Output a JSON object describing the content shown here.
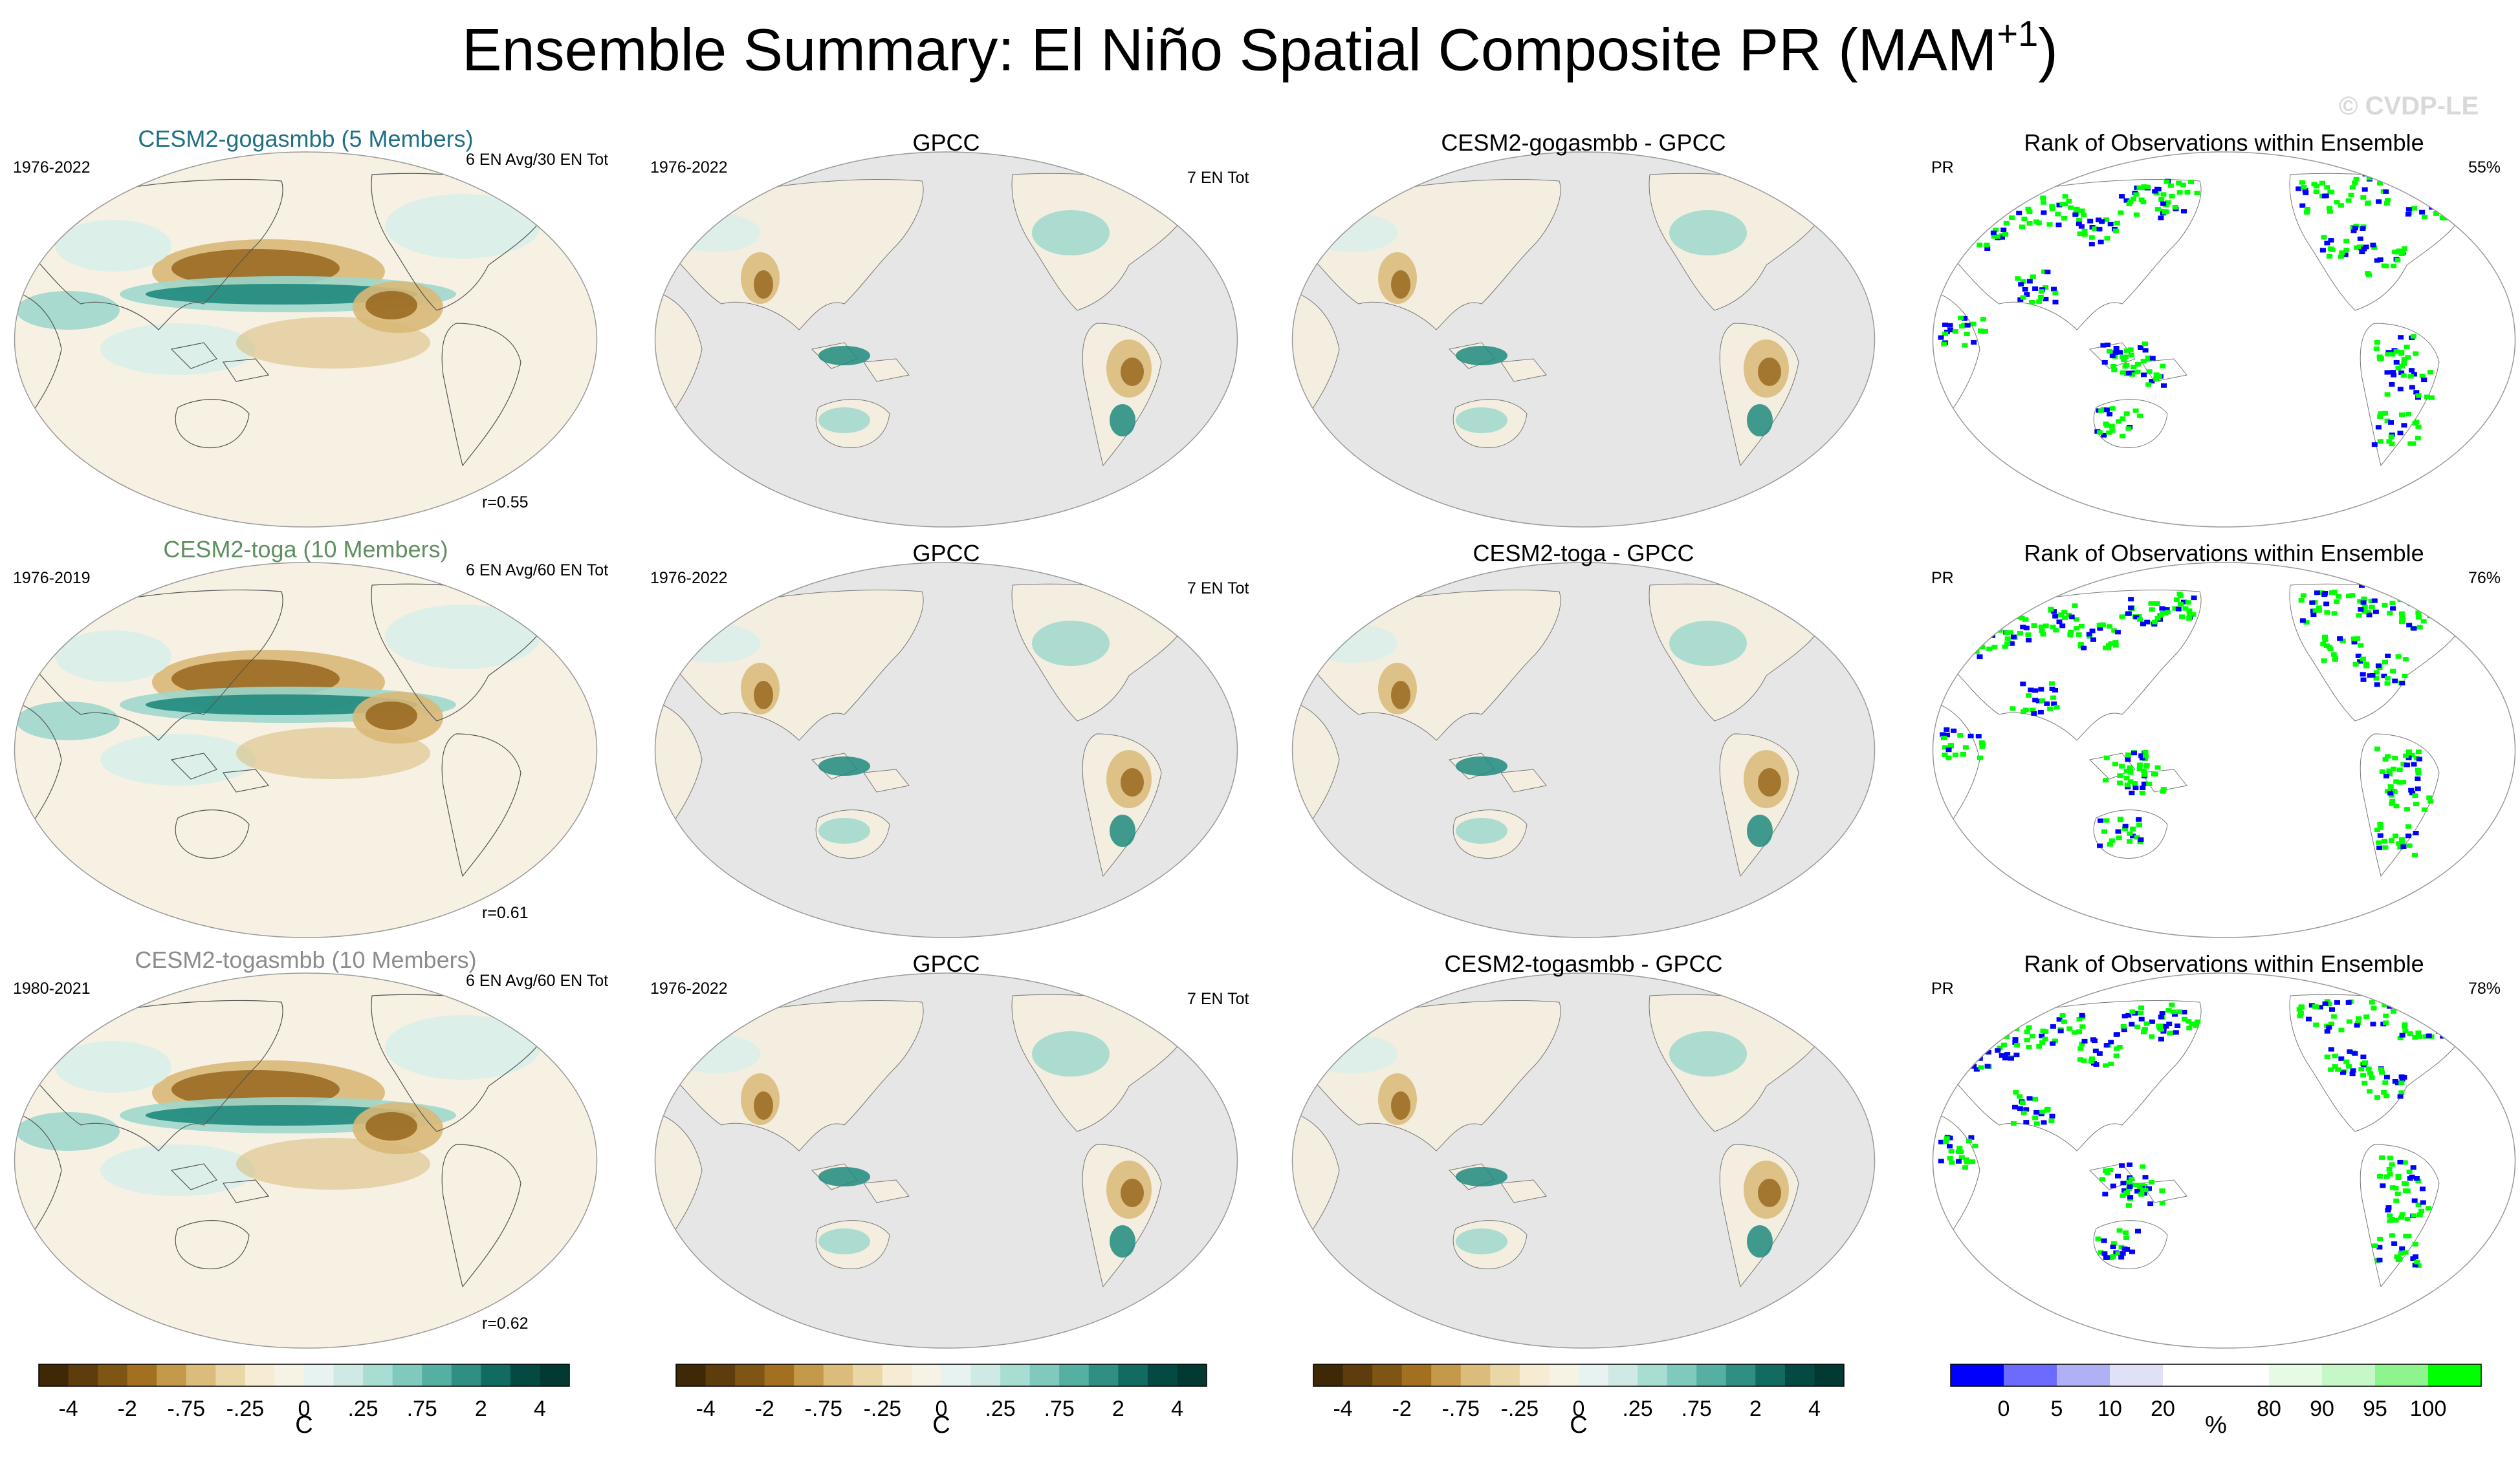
{
  "title": {
    "main": "Ensemble Summary: El Niño Spatial Composite PR (MAM",
    "superscript": "+1",
    "end": ")"
  },
  "watermark": "© CVDP-LE",
  "rows": [
    {
      "model": {
        "title": "CESM2-gogasmbb (5 Members)",
        "title_color": "#1f6f86",
        "years": "1976-2022",
        "events": "6 EN Avg/30 EN Tot",
        "corr": "r=0.55"
      },
      "obs": {
        "title": "GPCC",
        "years": "1976-2022",
        "events": "7 EN Tot"
      },
      "diff": {
        "title": "CESM2-gogasmbb - GPCC"
      },
      "rank": {
        "title": "Rank of Observations within Ensemble",
        "var": "PR",
        "pct": "55%"
      }
    },
    {
      "model": {
        "title": "CESM2-toga (10 Members)",
        "title_color": "#5f8f5f",
        "years": "1976-2019",
        "events": "6 EN Avg/60 EN Tot",
        "corr": "r=0.61"
      },
      "obs": {
        "title": "GPCC",
        "years": "1976-2022",
        "events": "7 EN Tot"
      },
      "diff": {
        "title": "CESM2-toga - GPCC"
      },
      "rank": {
        "title": "Rank of Observations within Ensemble",
        "var": "PR",
        "pct": "76%"
      }
    },
    {
      "model": {
        "title": "CESM2-togasmbb (10 Members)",
        "title_color": "#8c8c8c",
        "years": "1980-2021",
        "events": "6 EN Avg/60 EN Tot",
        "corr": "r=0.62"
      },
      "obs": {
        "title": "GPCC",
        "years": "1976-2022",
        "events": "7 EN Tot"
      },
      "diff": {
        "title": "CESM2-togasmbb - GPCC"
      },
      "rank": {
        "title": "Rank of Observations within Ensemble",
        "var": "PR",
        "pct": "78%"
      }
    }
  ],
  "chart_data": {
    "type": "heatmap",
    "colorbars": [
      {
        "name": "model-colorbar",
        "unit": "C",
        "ticks": [
          "-4",
          "-2",
          "-.75",
          "-.25",
          "0",
          ".25",
          ".75",
          "2",
          "4"
        ],
        "colors": [
          "#3f2805",
          "#5e3c0c",
          "#7f5513",
          "#a2701f",
          "#c49a4a",
          "#dcbc7a",
          "#ead7a8",
          "#f5ecd3",
          "#f7f2e6",
          "#e8f2f0",
          "#cfe9e4",
          "#a8ddd3",
          "#7fcabd",
          "#55b0a2",
          "#2f8f82",
          "#126b60",
          "#054a42",
          "#023a33"
        ]
      },
      {
        "name": "obs-colorbar",
        "unit": "C",
        "ticks": [
          "-4",
          "-2",
          "-.75",
          "-.25",
          "0",
          ".25",
          ".75",
          "2",
          "4"
        ],
        "colors": [
          "#3f2805",
          "#5e3c0c",
          "#7f5513",
          "#a2701f",
          "#c49a4a",
          "#dcbc7a",
          "#ead7a8",
          "#f5ecd3",
          "#f7f2e6",
          "#e8f2f0",
          "#cfe9e4",
          "#a8ddd3",
          "#7fcabd",
          "#55b0a2",
          "#2f8f82",
          "#126b60",
          "#054a42",
          "#023a33"
        ]
      },
      {
        "name": "diff-colorbar",
        "unit": "C",
        "ticks": [
          "-4",
          "-2",
          "-.75",
          "-.25",
          "0",
          ".25",
          ".75",
          "2",
          "4"
        ],
        "colors": [
          "#3f2805",
          "#5e3c0c",
          "#7f5513",
          "#a2701f",
          "#c49a4a",
          "#dcbc7a",
          "#ead7a8",
          "#f5ecd3",
          "#f7f2e6",
          "#e8f2f0",
          "#cfe9e4",
          "#a8ddd3",
          "#7fcabd",
          "#55b0a2",
          "#2f8f82",
          "#126b60",
          "#054a42",
          "#023a33"
        ]
      },
      {
        "name": "rank-colorbar",
        "unit": "%",
        "ticks": [
          "0",
          "5",
          "10",
          "20",
          "80",
          "90",
          "95",
          "100"
        ],
        "colors": [
          "#0000ff",
          "#6b6bff",
          "#b0b0f5",
          "#e0e0f8",
          "#ffffff",
          "#ffffff",
          "#e6fae6",
          "#c6f7c6",
          "#8ef58e",
          "#00ff00"
        ]
      }
    ]
  }
}
